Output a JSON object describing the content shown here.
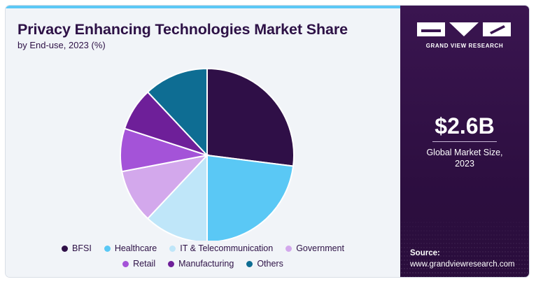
{
  "header": {
    "title": "Privacy Enhancing Technologies Market Share",
    "subtitle": "by End-use, 2023 (%)"
  },
  "chart_data": {
    "type": "pie",
    "title": "Privacy Enhancing Technologies Market Share",
    "subtitle": "by End-use, 2023 (%)",
    "categories": [
      "BFSI",
      "Healthcare",
      "IT & Telecommunication",
      "Government",
      "Retail",
      "Manufacturing",
      "Others"
    ],
    "values": [
      27,
      23,
      12,
      10,
      8,
      8,
      12
    ],
    "colors": [
      "#2f0f47",
      "#5ac8f5",
      "#bfe6f9",
      "#d3a8ec",
      "#a453d8",
      "#6e1f99",
      "#0e6d93"
    ],
    "legend": "bottom"
  },
  "legend": {
    "row1": [
      {
        "label": "BFSI",
        "color": "#2f0f47"
      },
      {
        "label": "Healthcare",
        "color": "#5ac8f5"
      },
      {
        "label": "IT & Telecommunication",
        "color": "#bfe6f9"
      },
      {
        "label": "Government",
        "color": "#d3a8ec"
      }
    ],
    "row2": [
      {
        "label": "Retail",
        "color": "#a453d8"
      },
      {
        "label": "Manufacturing",
        "color": "#6e1f99"
      },
      {
        "label": "Others",
        "color": "#0e6d93"
      }
    ]
  },
  "sidebar": {
    "logo_text": "GRAND VIEW RESEARCH",
    "market_value": "$2.6B",
    "market_label_line1": "Global Market Size,",
    "market_label_line2": "2023",
    "source_label": "Source:",
    "source_url": "www.grandviewresearch.com"
  }
}
